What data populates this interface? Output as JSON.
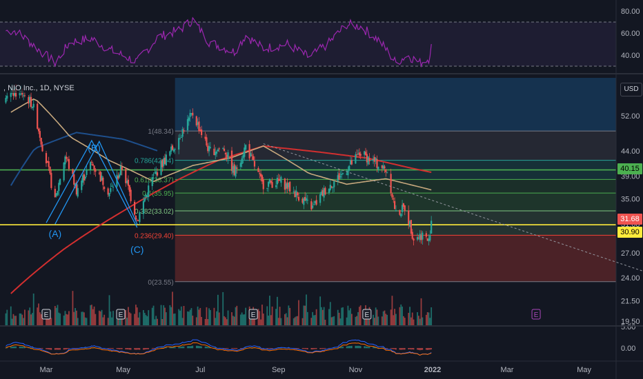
{
  "legend": {
    "symbol_text": ", NIO Inc., 1D, NYSE"
  },
  "currency_label": "USD",
  "colors": {
    "background": "#131722",
    "up": "#26a69a",
    "down": "#ef5350",
    "rsi": "#9c27b0",
    "ma_long": "#d32f2f",
    "ma_mid": "#c8a97e",
    "ma_blue": "#1e4f8c",
    "pattern": "#2196f3",
    "green_line": "#4caf50",
    "yellow_line": "#ffeb3b"
  },
  "price_tags": {
    "green_level": "40.15",
    "red_level": "31.68",
    "yellow_level": "30.90"
  },
  "chart_data": {
    "type": "candlestick",
    "price_axis": {
      "scale": "log",
      "ticks": [
        "52.00",
        "44.00",
        "39.00",
        "35.00",
        "31.00",
        "27.00",
        "24.00",
        "21.50",
        "19.50"
      ]
    },
    "rsi_axis": {
      "ticks": [
        "80.00",
        "60.00",
        "40.00"
      ],
      "bands": [
        70,
        30
      ]
    },
    "macd_axis": {
      "ticks": [
        "5.00",
        "0.00"
      ]
    },
    "x_axis": {
      "ticks": [
        {
          "label": "Mar",
          "date": "2021-03-01"
        },
        {
          "label": "May",
          "date": "2021-05-01"
        },
        {
          "label": "Jul",
          "date": "2021-07-01"
        },
        {
          "label": "Sep",
          "date": "2021-09-01"
        },
        {
          "label": "Nov",
          "date": "2021-11-01"
        },
        {
          "label": "2022",
          "date": "2022-01-01"
        },
        {
          "label": "Mar",
          "date": "2022-03-01"
        },
        {
          "label": "May",
          "date": "2022-05-01"
        }
      ]
    },
    "fibonacci": {
      "start_date": "2021-06-11",
      "levels": [
        {
          "label": "1(48.34)",
          "price": 48.34,
          "color": "#787b86"
        },
        {
          "label": "0.786(42.04)",
          "price": 42.04,
          "color": "#26a69a"
        },
        {
          "label": "0.618(38.37)",
          "price": 38.37,
          "color": "#4caf50"
        },
        {
          "label": "0.5(35.95)",
          "price": 35.95,
          "color": "#4caf50"
        },
        {
          "label": "0.382(33.02)",
          "price": 33.02,
          "color": "#81c784"
        },
        {
          "label": "0.236(29.40)",
          "price": 29.4,
          "color": "#f44336"
        },
        {
          "label": "0(23.55)",
          "price": 23.55,
          "color": "#787b86"
        }
      ]
    },
    "horizontal_levels": [
      {
        "price": 40.15,
        "color": "#4caf50"
      },
      {
        "price": 30.9,
        "color": "#ffeb3b"
      }
    ],
    "abc_pattern": {
      "labels": [
        {
          "text": "(A)",
          "date": "2021-03-08",
          "price": 30.5
        },
        {
          "text": "(B)",
          "date": "2021-04-08",
          "price": 46.0
        },
        {
          "text": "(C)",
          "date": "2021-05-12",
          "price": 28.3
        }
      ],
      "lines": [
        {
          "date": "2021-03-01",
          "price": 31.2
        },
        {
          "date": "2021-04-06",
          "price": 46.2
        },
        {
          "date": "2021-05-12",
          "price": 30.5
        }
      ],
      "parallel": [
        {
          "date": "2021-03-08",
          "price": 31.0
        },
        {
          "date": "2021-04-12",
          "price": 46.0
        },
        {
          "date": "2021-05-12",
          "price": 31.0
        }
      ]
    },
    "trendline": [
      {
        "date": "2021-08-20",
        "price": 45.5
      },
      {
        "date": "2022-06-20",
        "price": 24.6
      }
    ],
    "earnings_markers": [
      {
        "date": "2021-03-01",
        "label": "E"
      },
      {
        "date": "2021-04-29",
        "label": "E"
      },
      {
        "date": "2021-08-12",
        "label": "E"
      },
      {
        "date": "2021-11-10",
        "label": "E"
      },
      {
        "date": "2022-03-24",
        "label": "E"
      }
    ],
    "ohlc_anchors": [
      {
        "date": "2021-02-10",
        "price": 58.0
      },
      {
        "date": "2021-02-18",
        "price": 55.0
      },
      {
        "date": "2021-02-26",
        "price": 45.0
      },
      {
        "date": "2021-03-08",
        "price": 34.5
      },
      {
        "date": "2021-03-16",
        "price": 43.0
      },
      {
        "date": "2021-03-25",
        "price": 36.5
      },
      {
        "date": "2021-04-06",
        "price": 41.5
      },
      {
        "date": "2021-04-20",
        "price": 36.0
      },
      {
        "date": "2021-04-30",
        "price": 40.5
      },
      {
        "date": "2021-05-12",
        "price": 31.5
      },
      {
        "date": "2021-05-24",
        "price": 38.5
      },
      {
        "date": "2021-06-08",
        "price": 44.0
      },
      {
        "date": "2021-06-25",
        "price": 52.5
      },
      {
        "date": "2021-07-08",
        "price": 44.0
      },
      {
        "date": "2021-07-20",
        "price": 44.5
      },
      {
        "date": "2021-07-28",
        "price": 39.5
      },
      {
        "date": "2021-08-06",
        "price": 45.0
      },
      {
        "date": "2021-08-19",
        "price": 37.5
      },
      {
        "date": "2021-09-03",
        "price": 38.0
      },
      {
        "date": "2021-09-14",
        "price": 36.0
      },
      {
        "date": "2021-09-28",
        "price": 33.5
      },
      {
        "date": "2021-10-08",
        "price": 36.5
      },
      {
        "date": "2021-10-22",
        "price": 39.5
      },
      {
        "date": "2021-11-05",
        "price": 43.5
      },
      {
        "date": "2021-11-17",
        "price": 41.5
      },
      {
        "date": "2021-11-26",
        "price": 40.0
      },
      {
        "date": "2021-12-03",
        "price": 32.5
      },
      {
        "date": "2021-12-10",
        "price": 33.5
      },
      {
        "date": "2021-12-17",
        "price": 29.0
      },
      {
        "date": "2021-12-24",
        "price": 29.5
      },
      {
        "date": "2021-12-29",
        "price": 28.5
      },
      {
        "date": "2021-12-31",
        "price": 31.68
      }
    ],
    "rsi_anchors": [
      {
        "date": "2021-02-05",
        "value": 62
      },
      {
        "date": "2021-02-20",
        "value": 48
      },
      {
        "date": "2021-03-08",
        "value": 33
      },
      {
        "date": "2021-03-20",
        "value": 52
      },
      {
        "date": "2021-04-06",
        "value": 55
      },
      {
        "date": "2021-04-20",
        "value": 45
      },
      {
        "date": "2021-05-12",
        "value": 34
      },
      {
        "date": "2021-05-28",
        "value": 56
      },
      {
        "date": "2021-06-15",
        "value": 63
      },
      {
        "date": "2021-06-25",
        "value": 72
      },
      {
        "date": "2021-07-08",
        "value": 52
      },
      {
        "date": "2021-07-28",
        "value": 43
      },
      {
        "date": "2021-08-06",
        "value": 58
      },
      {
        "date": "2021-08-20",
        "value": 46
      },
      {
        "date": "2021-09-08",
        "value": 50
      },
      {
        "date": "2021-09-25",
        "value": 38
      },
      {
        "date": "2021-10-10",
        "value": 50
      },
      {
        "date": "2021-10-25",
        "value": 68
      },
      {
        "date": "2021-11-05",
        "value": 66
      },
      {
        "date": "2021-11-20",
        "value": 53
      },
      {
        "date": "2021-12-03",
        "value": 33
      },
      {
        "date": "2021-12-12",
        "value": 40
      },
      {
        "date": "2021-12-22",
        "value": 33
      },
      {
        "date": "2021-12-29",
        "value": 37
      },
      {
        "date": "2021-12-31",
        "value": 48
      }
    ],
    "ma_long_anchors": [
      {
        "date": "2021-01-30",
        "price": 22.0
      },
      {
        "date": "2021-03-15",
        "price": 27.5
      },
      {
        "date": "2021-05-01",
        "price": 33.0
      },
      {
        "date": "2021-06-15",
        "price": 38.5
      },
      {
        "date": "2021-07-15",
        "price": 42.0
      },
      {
        "date": "2021-08-20",
        "price": 45.0
      },
      {
        "date": "2021-10-01",
        "price": 43.8
      },
      {
        "date": "2021-11-10",
        "price": 42.5
      },
      {
        "date": "2021-12-15",
        "price": 40.5
      },
      {
        "date": "2021-12-31",
        "price": 39.7
      }
    ],
    "ma_mid_anchors": [
      {
        "date": "2021-01-30",
        "price": 52.5
      },
      {
        "date": "2021-02-20",
        "price": 56.5
      },
      {
        "date": "2021-03-20",
        "price": 47.0
      },
      {
        "date": "2021-04-20",
        "price": 42.0
      },
      {
        "date": "2021-05-25",
        "price": 38.0
      },
      {
        "date": "2021-06-25",
        "price": 41.0
      },
      {
        "date": "2021-07-25",
        "price": 42.5
      },
      {
        "date": "2021-08-20",
        "price": 45.0
      },
      {
        "date": "2021-09-25",
        "price": 39.5
      },
      {
        "date": "2021-10-25",
        "price": 37.5
      },
      {
        "date": "2021-11-25",
        "price": 38.5
      },
      {
        "date": "2021-12-31",
        "price": 36.5
      }
    ],
    "ma_blue_anchors": [
      {
        "date": "2021-01-30",
        "price": 36.5
      },
      {
        "date": "2021-02-20",
        "price": 44.5
      },
      {
        "date": "2021-03-25",
        "price": 48.0
      },
      {
        "date": "2021-05-01",
        "price": 46.5
      },
      {
        "date": "2021-05-28",
        "price": 44.0
      }
    ]
  }
}
